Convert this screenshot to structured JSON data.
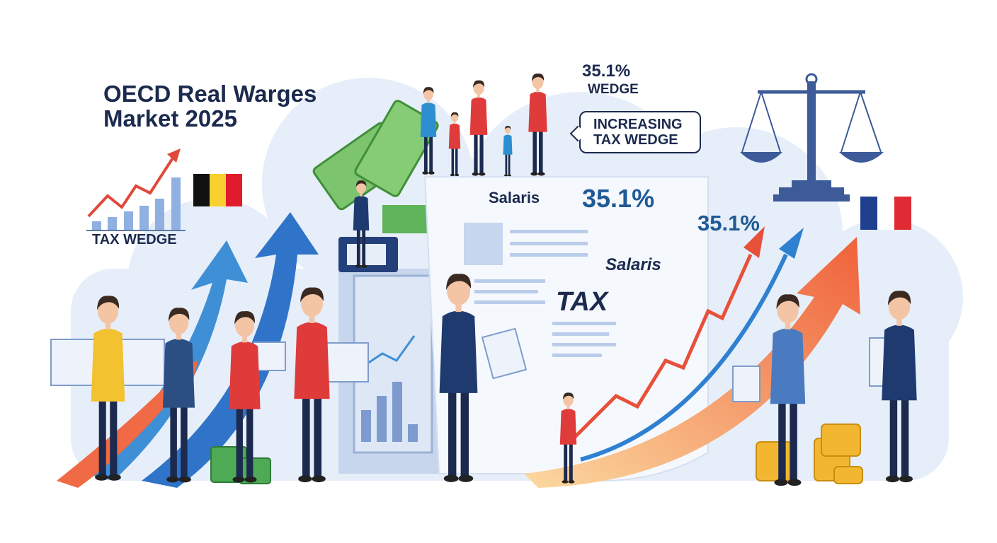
{
  "title": {
    "line1": "OECD Real Warges",
    "line2": "Market 2025"
  },
  "mini_chart": {
    "label": "TAX WEDGE"
  },
  "wedge_callout": {
    "value": "35.1%",
    "label": "WEDGE"
  },
  "speech_bubble": {
    "line1": "INCREASING",
    "line2": "TAX WEDGE"
  },
  "document": {
    "salaris_label": "Salaris",
    "percent": "35.1%",
    "salaris_italic": "Salaris",
    "tax_label": "TAX"
  },
  "arrow_label": {
    "percent": "35.1%"
  },
  "flags": {
    "left": "Belgium",
    "right": "France"
  },
  "colors": {
    "navy": "#1b2a4e",
    "blue": "#1f5a96",
    "red": "#e8503a",
    "green": "#5fb35a",
    "gold": "#f2b630"
  }
}
